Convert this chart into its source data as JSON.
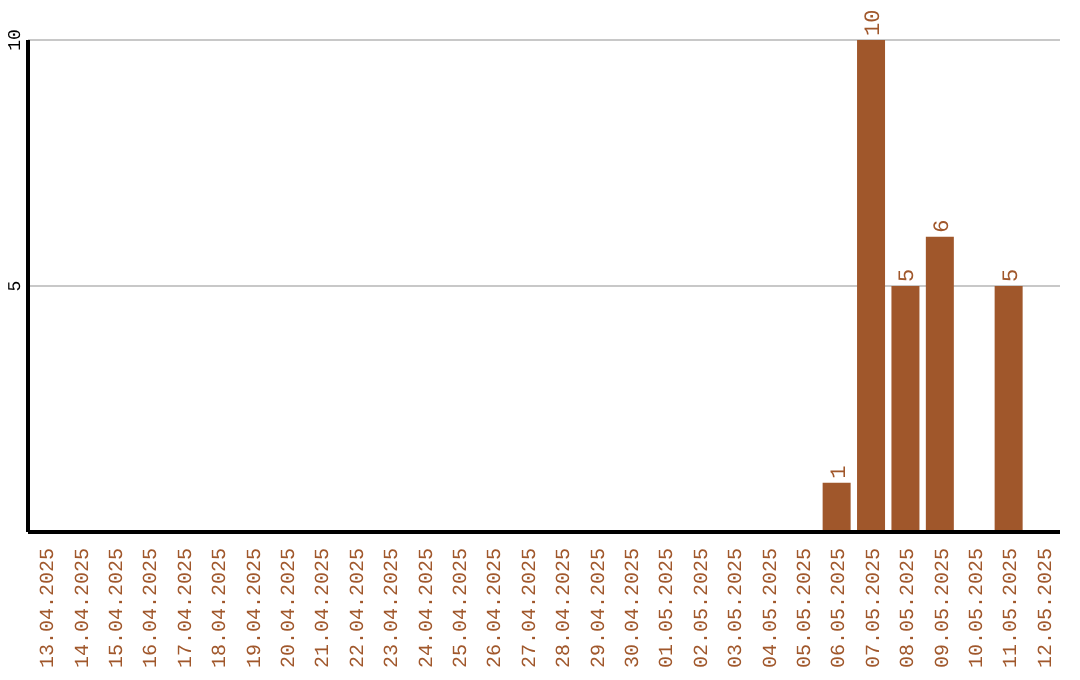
{
  "chart_data": {
    "type": "bar",
    "categories": [
      "13.04.2025",
      "14.04.2025",
      "15.04.2025",
      "16.04.2025",
      "17.04.2025",
      "18.04.2025",
      "19.04.2025",
      "20.04.2025",
      "21.04.2025",
      "22.04.2025",
      "23.04.2025",
      "24.04.2025",
      "25.04.2025",
      "26.04.2025",
      "27.04.2025",
      "28.04.2025",
      "29.04.2025",
      "30.04.2025",
      "01.05.2025",
      "02.05.2025",
      "03.05.2025",
      "04.05.2025",
      "05.05.2025",
      "06.05.2025",
      "07.05.2025",
      "08.05.2025",
      "09.05.2025",
      "10.05.2025",
      "11.05.2025",
      "12.05.2025"
    ],
    "values": [
      0,
      0,
      0,
      0,
      0,
      0,
      0,
      0,
      0,
      0,
      0,
      0,
      0,
      0,
      0,
      0,
      0,
      0,
      0,
      0,
      0,
      0,
      0,
      1,
      10,
      5,
      6,
      0,
      5,
      0
    ],
    "value_labels": [
      null,
      null,
      null,
      null,
      null,
      null,
      null,
      null,
      null,
      null,
      null,
      null,
      null,
      null,
      null,
      null,
      null,
      null,
      null,
      null,
      null,
      null,
      null,
      "1",
      "10",
      "5",
      "6",
      null,
      "5",
      null
    ],
    "color": "#a0572b",
    "ylim": [
      0,
      10
    ],
    "yticks": [
      5,
      10
    ],
    "grid": "y"
  }
}
